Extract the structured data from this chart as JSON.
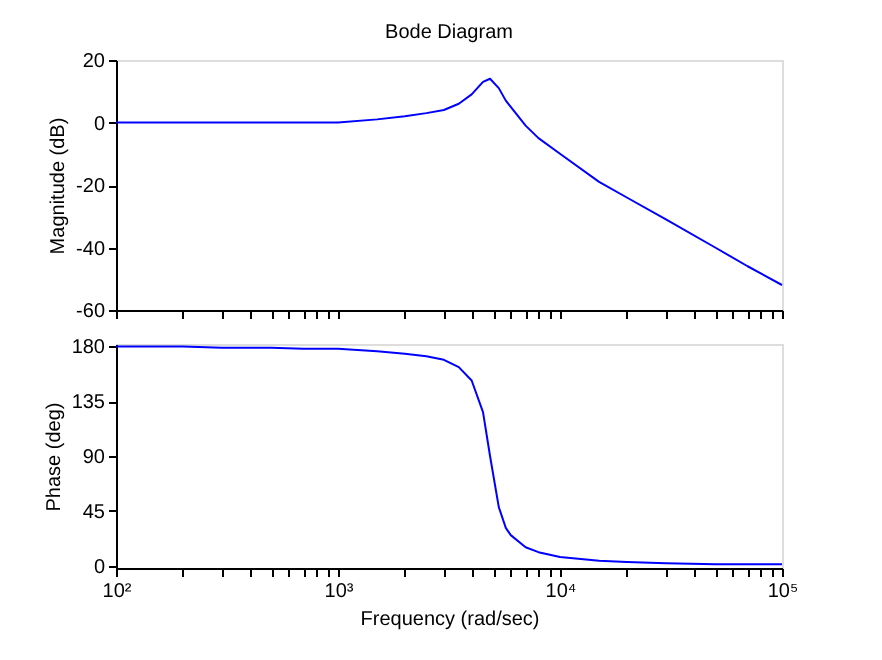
{
  "chart_data": [
    {
      "type": "line",
      "title": "Bode Diagram",
      "ylabel": "Magnitude (dB)",
      "color": "#0000ff",
      "line_style": "solid",
      "grid": false,
      "tick_labels": "y",
      "x": [
        100,
        200,
        300,
        500,
        700,
        1000,
        1500,
        2000,
        2500,
        3000,
        3500,
        4000,
        4500,
        4840,
        5300,
        5700,
        6000,
        7000,
        8000,
        10000,
        15000,
        20000,
        30000,
        50000,
        70000,
        100000
      ],
      "values": [
        0,
        0,
        0,
        0,
        0,
        0,
        1,
        2,
        3,
        4,
        6,
        9,
        13,
        14,
        11,
        7,
        5,
        -1,
        -5,
        -10,
        -19,
        -24,
        -31,
        -40,
        -46,
        -52
      ],
      "xlim": [
        100,
        100000
      ],
      "ylim": [
        -60,
        20
      ],
      "yticks": [
        -60,
        -40,
        -20,
        0,
        20
      ],
      "xticks": [
        {
          "value": 100,
          "label": null
        },
        {
          "value": 200,
          "label": null
        },
        {
          "value": 300,
          "label": null
        },
        {
          "value": 400,
          "label": null
        },
        {
          "value": 500,
          "label": null
        },
        {
          "value": 600,
          "label": null
        },
        {
          "value": 700,
          "label": null
        },
        {
          "value": 800,
          "label": null
        },
        {
          "value": 900,
          "label": null
        },
        {
          "value": 1000,
          "label": null
        },
        {
          "value": 2000,
          "label": null
        },
        {
          "value": 3000,
          "label": null
        },
        {
          "value": 4000,
          "label": null
        },
        {
          "value": 5000,
          "label": null
        },
        {
          "value": 6000,
          "label": null
        },
        {
          "value": 7000,
          "label": null
        },
        {
          "value": 8000,
          "label": null
        },
        {
          "value": 9000,
          "label": null
        },
        {
          "value": 10000,
          "label": null
        },
        {
          "value": 20000,
          "label": null
        },
        {
          "value": 30000,
          "label": null
        },
        {
          "value": 40000,
          "label": null
        },
        {
          "value": 50000,
          "label": null
        },
        {
          "value": 60000,
          "label": null
        },
        {
          "value": 70000,
          "label": null
        },
        {
          "value": 80000,
          "label": null
        },
        {
          "value": 90000,
          "label": null
        },
        {
          "value": 100000,
          "label": null
        }
      ],
      "log": "x"
    },
    {
      "type": "line",
      "xlabel": "Frequency  (rad/sec)",
      "ylabel": "Phase (deg)",
      "color": "#0000ff",
      "line_style": "solid",
      "grid": false,
      "x": [
        100,
        200,
        300,
        500,
        700,
        1000,
        1500,
        2000,
        2500,
        3000,
        3500,
        4000,
        4500,
        4840,
        5300,
        5700,
        6000,
        7000,
        8000,
        10000,
        15000,
        20000,
        30000,
        50000,
        70000,
        100000
      ],
      "values": [
        180,
        180,
        179,
        179,
        178,
        178,
        176,
        174,
        172,
        169,
        163,
        152,
        126,
        90,
        48,
        31,
        25,
        15,
        11,
        7,
        4,
        3,
        2,
        1,
        1,
        1
      ],
      "xlim": [
        100,
        100000
      ],
      "ylim": [
        -2,
        182
      ],
      "yticks": [
        0,
        45,
        90,
        135,
        180
      ],
      "xticks": [
        {
          "value": 100,
          "label": "10²"
        },
        {
          "value": 200,
          "label": null
        },
        {
          "value": 300,
          "label": null
        },
        {
          "value": 400,
          "label": null
        },
        {
          "value": 500,
          "label": null
        },
        {
          "value": 600,
          "label": null
        },
        {
          "value": 700,
          "label": null
        },
        {
          "value": 800,
          "label": null
        },
        {
          "value": 900,
          "label": null
        },
        {
          "value": 1000,
          "label": "10³"
        },
        {
          "value": 2000,
          "label": null
        },
        {
          "value": 3000,
          "label": null
        },
        {
          "value": 4000,
          "label": null
        },
        {
          "value": 5000,
          "label": null
        },
        {
          "value": 6000,
          "label": null
        },
        {
          "value": 7000,
          "label": null
        },
        {
          "value": 8000,
          "label": null
        },
        {
          "value": 9000,
          "label": null
        },
        {
          "value": 10000,
          "label": "10⁴"
        },
        {
          "value": 20000,
          "label": null
        },
        {
          "value": 30000,
          "label": null
        },
        {
          "value": 40000,
          "label": null
        },
        {
          "value": 50000,
          "label": null
        },
        {
          "value": 60000,
          "label": null
        },
        {
          "value": 70000,
          "label": null
        },
        {
          "value": 80000,
          "label": null
        },
        {
          "value": 90000,
          "label": null
        },
        {
          "value": 100000,
          "label": "10⁵"
        }
      ],
      "log": "x"
    }
  ]
}
